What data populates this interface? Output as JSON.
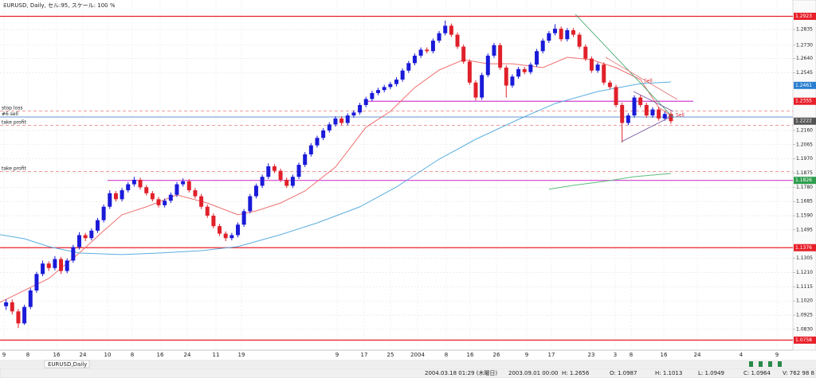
{
  "chart_data": {
    "type": "candlestick",
    "title": "EURUSD, Daily, セル:95, スケール: 100 %",
    "tab": "EURUSD,Daily",
    "up_color": "#1a1ad8",
    "down_color": "#e0202a",
    "xlim": [
      -1,
      129
    ],
    "ylim": [
      1.0691,
      1.3032
    ],
    "yticks": [
      1.2835,
      {
        "value": 1.273,
        "label": "1.2730"
      },
      {
        "value": 1.264,
        "label": "1.2640"
      },
      1.2545,
      {
        "value": 1.216,
        "label": "1.2160"
      },
      1.2065,
      {
        "value": 1.197,
        "label": "1.1970"
      },
      1.1875,
      {
        "value": 1.178,
        "label": "1.1780"
      },
      1.1685,
      {
        "value": 1.159,
        "label": "1.1590"
      },
      1.1495,
      1.1305,
      {
        "value": 1.121,
        "label": "1.1210"
      },
      1.1115,
      {
        "value": 1.102,
        "label": "1.1020"
      },
      1.0925,
      {
        "value": 1.083,
        "label": "1.0830"
      }
    ],
    "xticks": [
      "9",
      "8",
      "16",
      "24",
      "10",
      "8",
      "16",
      "24",
      "11",
      "19",
      "9",
      "17",
      "25",
      "2004",
      "8",
      "16",
      "26",
      "9",
      "17",
      "23",
      "3",
      "8",
      "16",
      "24",
      "4",
      "9"
    ],
    "grid": true,
    "ohlc": [
      [
        1.0985,
        1.103,
        1.096,
        1.1011
      ],
      [
        1.1011,
        1.103,
        1.093,
        1.095
      ],
      [
        1.095,
        1.0965,
        1.084,
        1.087
      ],
      [
        1.087,
        1.0995,
        1.086,
        1.098
      ],
      [
        1.098,
        1.1105,
        1.0965,
        1.109
      ],
      [
        1.109,
        1.1215,
        1.1075,
        1.12
      ],
      [
        1.12,
        1.129,
        1.1185,
        1.127
      ],
      [
        1.127,
        1.1285,
        1.122,
        1.124
      ],
      [
        1.124,
        1.132,
        1.1225,
        1.13
      ],
      [
        1.13,
        1.1315,
        1.12,
        1.122
      ],
      [
        1.122,
        1.1305,
        1.1205,
        1.129
      ],
      [
        1.129,
        1.1395,
        1.1275,
        1.138
      ],
      [
        1.138,
        1.148,
        1.1365,
        1.146
      ],
      [
        1.146,
        1.1475,
        1.142,
        1.144
      ],
      [
        1.144,
        1.1505,
        1.1425,
        1.149
      ],
      [
        1.149,
        1.1575,
        1.1475,
        1.156
      ],
      [
        1.156,
        1.1665,
        1.1545,
        1.165
      ],
      [
        1.165,
        1.176,
        1.1635,
        1.174
      ],
      [
        1.174,
        1.1755,
        1.1685,
        1.17
      ],
      [
        1.17,
        1.1775,
        1.1685,
        1.176
      ],
      [
        1.176,
        1.1815,
        1.1745,
        1.18
      ],
      [
        1.18,
        1.185,
        1.1785,
        1.183
      ],
      [
        1.183,
        1.1845,
        1.1765,
        1.178
      ],
      [
        1.178,
        1.1795,
        1.1725,
        1.174
      ],
      [
        1.174,
        1.1755,
        1.1685,
        1.17
      ],
      [
        1.17,
        1.1715,
        1.1645,
        1.166
      ],
      [
        1.166,
        1.1705,
        1.1645,
        1.169
      ],
      [
        1.169,
        1.1745,
        1.1675,
        1.173
      ],
      [
        1.173,
        1.1815,
        1.1715,
        1.18
      ],
      [
        1.18,
        1.184,
        1.1785,
        1.182
      ],
      [
        1.182,
        1.1835,
        1.1745,
        1.176
      ],
      [
        1.176,
        1.1775,
        1.1705,
        1.172
      ],
      [
        1.172,
        1.1735,
        1.1635,
        1.165
      ],
      [
        1.165,
        1.1665,
        1.1575,
        1.159
      ],
      [
        1.159,
        1.1605,
        1.1505,
        1.152
      ],
      [
        1.152,
        1.1535,
        1.1455,
        1.147
      ],
      [
        1.147,
        1.1485,
        1.142,
        1.144
      ],
      [
        1.144,
        1.1475,
        1.1425,
        1.146
      ],
      [
        1.146,
        1.1545,
        1.1445,
        1.153
      ],
      [
        1.153,
        1.1635,
        1.1515,
        1.162
      ],
      [
        1.162,
        1.1735,
        1.1605,
        1.172
      ],
      [
        1.172,
        1.1805,
        1.1705,
        1.179
      ],
      [
        1.179,
        1.1865,
        1.1775,
        1.185
      ],
      [
        1.185,
        1.194,
        1.1835,
        1.192
      ],
      [
        1.192,
        1.1935,
        1.1875,
        1.189
      ],
      [
        1.189,
        1.1905,
        1.1815,
        1.183
      ],
      [
        1.183,
        1.1845,
        1.1775,
        1.179
      ],
      [
        1.179,
        1.1865,
        1.1775,
        1.185
      ],
      [
        1.185,
        1.1945,
        1.1835,
        1.193
      ],
      [
        1.193,
        1.2015,
        1.1915,
        1.2
      ],
      [
        1.2,
        1.2075,
        1.1985,
        1.206
      ],
      [
        1.206,
        1.2125,
        1.2045,
        1.211
      ],
      [
        1.211,
        1.2175,
        1.2095,
        1.216
      ],
      [
        1.216,
        1.2215,
        1.2145,
        1.22
      ],
      [
        1.22,
        1.2255,
        1.2185,
        1.224
      ],
      [
        1.224,
        1.2255,
        1.2195,
        1.221
      ],
      [
        1.221,
        1.2275,
        1.2195,
        1.226
      ],
      [
        1.226,
        1.2295,
        1.2245,
        1.228
      ],
      [
        1.228,
        1.2345,
        1.2265,
        1.233
      ],
      [
        1.233,
        1.2385,
        1.2315,
        1.237
      ],
      [
        1.237,
        1.2425,
        1.2355,
        1.241
      ],
      [
        1.241,
        1.2445,
        1.2395,
        1.243
      ],
      [
        1.243,
        1.2465,
        1.2415,
        1.245
      ],
      [
        1.245,
        1.2485,
        1.2435,
        1.247
      ],
      [
        1.247,
        1.2515,
        1.2455,
        1.25
      ],
      [
        1.25,
        1.2575,
        1.2485,
        1.256
      ],
      [
        1.256,
        1.2625,
        1.2545,
        1.261
      ],
      [
        1.261,
        1.2675,
        1.2595,
        1.266
      ],
      [
        1.266,
        1.2715,
        1.2645,
        1.27
      ],
      [
        1.27,
        1.2715,
        1.2675,
        1.269
      ],
      [
        1.269,
        1.2775,
        1.2675,
        1.276
      ],
      [
        1.276,
        1.2825,
        1.2745,
        1.281
      ],
      [
        1.281,
        1.2895,
        1.2795,
        1.286
      ],
      [
        1.286,
        1.2875,
        1.2785,
        1.28
      ],
      [
        1.28,
        1.2815,
        1.2705,
        1.272
      ],
      [
        1.272,
        1.2735,
        1.2605,
        1.262
      ],
      [
        1.262,
        1.2635,
        1.2465,
        1.248
      ],
      [
        1.248,
        1.2495,
        1.236,
        1.238
      ],
      [
        1.238,
        1.2545,
        1.2365,
        1.253
      ],
      [
        1.253,
        1.2675,
        1.2515,
        1.266
      ],
      [
        1.266,
        1.2745,
        1.2645,
        1.273
      ],
      [
        1.273,
        1.2745,
        1.2565,
        1.258
      ],
      [
        1.258,
        1.2595,
        1.238,
        1.246
      ],
      [
        1.246,
        1.2535,
        1.2445,
        1.252
      ],
      [
        1.252,
        1.2585,
        1.2505,
        1.257
      ],
      [
        1.257,
        1.2585,
        1.2535,
        1.255
      ],
      [
        1.255,
        1.2615,
        1.2535,
        1.26
      ],
      [
        1.26,
        1.2705,
        1.2585,
        1.269
      ],
      [
        1.269,
        1.2775,
        1.2675,
        1.276
      ],
      [
        1.276,
        1.2825,
        1.2745,
        1.281
      ],
      [
        1.281,
        1.287,
        1.2795,
        1.284
      ],
      [
        1.284,
        1.2855,
        1.2755,
        1.277
      ],
      [
        1.277,
        1.2845,
        1.2755,
        1.283
      ],
      [
        1.283,
        1.2845,
        1.2785,
        1.28
      ],
      [
        1.28,
        1.2815,
        1.2705,
        1.272
      ],
      [
        1.272,
        1.2735,
        1.2625,
        1.264
      ],
      [
        1.264,
        1.2655,
        1.2545,
        1.256
      ],
      [
        1.256,
        1.2615,
        1.2545,
        1.26
      ],
      [
        1.26,
        1.2615,
        1.2465,
        1.248
      ],
      [
        1.248,
        1.2495,
        1.2435,
        1.245
      ],
      [
        1.245,
        1.2465,
        1.2315,
        1.233
      ],
      [
        1.233,
        1.2345,
        1.208,
        1.221
      ],
      [
        1.221,
        1.2275,
        1.2195,
        1.226
      ],
      [
        1.226,
        1.2395,
        1.2245,
        1.238
      ],
      [
        1.238,
        1.2395,
        1.2315,
        1.233
      ],
      [
        1.233,
        1.2345,
        1.2245,
        1.226
      ],
      [
        1.226,
        1.2315,
        1.2245,
        1.23
      ],
      [
        1.23,
        1.2315,
        1.2225,
        1.224
      ],
      [
        1.224,
        1.2285,
        1.2225,
        1.227
      ],
      [
        1.227,
        1.2285,
        1.2205,
        1.2222
      ]
    ],
    "lines": [
      {
        "color": "#f07070",
        "x": [
          -1,
          7,
          12,
          16,
          19,
          23,
          28,
          33,
          38,
          41,
          45,
          49,
          54,
          57,
          59,
          63,
          67,
          71,
          75,
          79,
          83,
          88,
          92,
          96,
          100,
          104,
          107,
          109
        ],
        "values": [
          1.1011,
          1.117,
          1.134,
          1.1489,
          1.1596,
          1.1649,
          1.1729,
          1.1675,
          1.1596,
          1.1622,
          1.1675,
          1.1755,
          1.1915,
          1.2074,
          1.2181,
          1.2287,
          1.2447,
          1.2564,
          1.2633,
          1.2606,
          1.2606,
          1.258,
          1.2649,
          1.2633,
          1.258,
          1.25,
          1.2314,
          1.2261
        ]
      },
      {
        "color": "#5aaee0",
        "x": [
          -1,
          3,
          7,
          12,
          19,
          25,
          32,
          38,
          45,
          51,
          58,
          64,
          71,
          77,
          84,
          90,
          97,
          104,
          109
        ],
        "values": [
          1.1463,
          1.1436,
          1.1383,
          1.134,
          1.133,
          1.134,
          1.1356,
          1.1383,
          1.1463,
          1.1542,
          1.1649,
          1.1782,
          1.1968,
          1.2101,
          1.2234,
          1.234,
          1.242,
          1.2473,
          1.2484
        ]
      },
      {
        "color": "#5cbf7a",
        "x": [
          89,
          93,
          98,
          103,
          109
        ],
        "values": [
          1.1766,
          1.1793,
          1.1819,
          1.1851,
          1.1872
        ]
      }
    ],
    "levels": [
      {
        "value": 1.2923,
        "color": "#e8202a"
      },
      {
        "value": 1.2355,
        "color": "#d040d0",
        "tag_color": "#e8202a"
      },
      {
        "value": 1.1826,
        "color": "#d040d0",
        "tag_color": "#2e9e4e"
      },
      {
        "value": 1.1376,
        "color": "#e8202a"
      },
      {
        "value": 1.0758,
        "color": "#e8202a"
      }
    ],
    "tags": [
      {
        "value": 1.2461,
        "color": "#2a7fd0"
      },
      {
        "value": 1.2222,
        "color": "#555555"
      }
    ],
    "orders": [
      {
        "label": "stop loss",
        "value": 1.229,
        "color": "#e06060"
      },
      {
        "label": "#6 sell",
        "value": 1.225,
        "color": "#3070c0"
      },
      {
        "label": "take profit",
        "value": 1.2195,
        "color": "#e06060"
      },
      {
        "label": "take profit",
        "value": 1.1885,
        "color": "#e06060"
      }
    ],
    "annotations": [
      "Sell",
      "Sell"
    ],
    "status": [
      "2004.03.18 01:29 (木曜日)",
      "2003.09.01 00:00",
      "H: 1.2656",
      "O: 1.0987",
      "H: 1.1013",
      "L: 1.0949",
      "C: 1.0964",
      "V: 762 98 8"
    ]
  }
}
